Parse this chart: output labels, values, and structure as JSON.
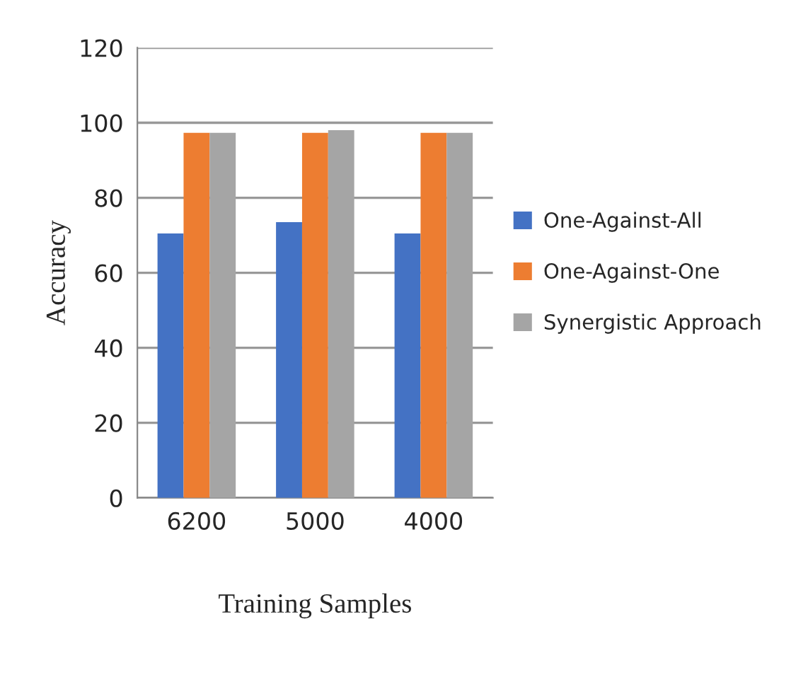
{
  "chart_data": {
    "type": "bar",
    "xlabel": "Training Samples",
    "ylabel": "Accuracy",
    "categories": [
      "6200",
      "5000",
      "4000"
    ],
    "series": [
      {
        "name": "One-Against-All",
        "color": "#4472c4",
        "values": [
          70.5,
          73.5,
          70.5
        ]
      },
      {
        "name": "One-Against-One",
        "color": "#ed7d31",
        "values": [
          97.3,
          97.3,
          97.3
        ]
      },
      {
        "name": "Synergistic Approach",
        "color": "#a5a5a5",
        "values": [
          97.3,
          98,
          97.3
        ]
      }
    ],
    "ylim": [
      0,
      120
    ],
    "yticks": [
      0,
      20,
      40,
      60,
      80,
      100,
      120
    ],
    "grid": "y",
    "legend": "right"
  }
}
